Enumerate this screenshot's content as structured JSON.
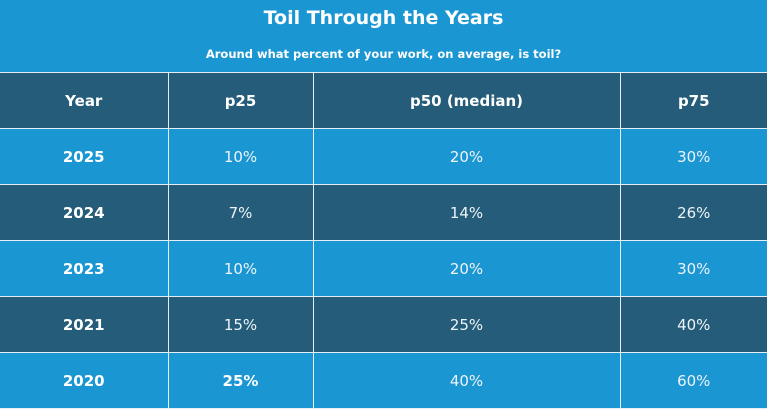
{
  "chart_data": {
    "type": "table",
    "title": "Toil Through the Years",
    "subtitle": "Around what percent of your work, on average, is toil?",
    "columns": [
      "Year",
      "p25",
      "p50 (median)",
      "p75"
    ],
    "rows": [
      [
        "2025",
        "10%",
        "20%",
        "30%"
      ],
      [
        "2024",
        "7%",
        "14%",
        "26%"
      ],
      [
        "2023",
        "10%",
        "20%",
        "30%"
      ],
      [
        "2021",
        "15%",
        "25%",
        "40%"
      ],
      [
        "2020",
        "25%",
        "40%",
        "60%"
      ]
    ],
    "colors": {
      "light_row": "#1a96d3",
      "dark_row": "#245c7a",
      "text": "#ffffff"
    }
  }
}
